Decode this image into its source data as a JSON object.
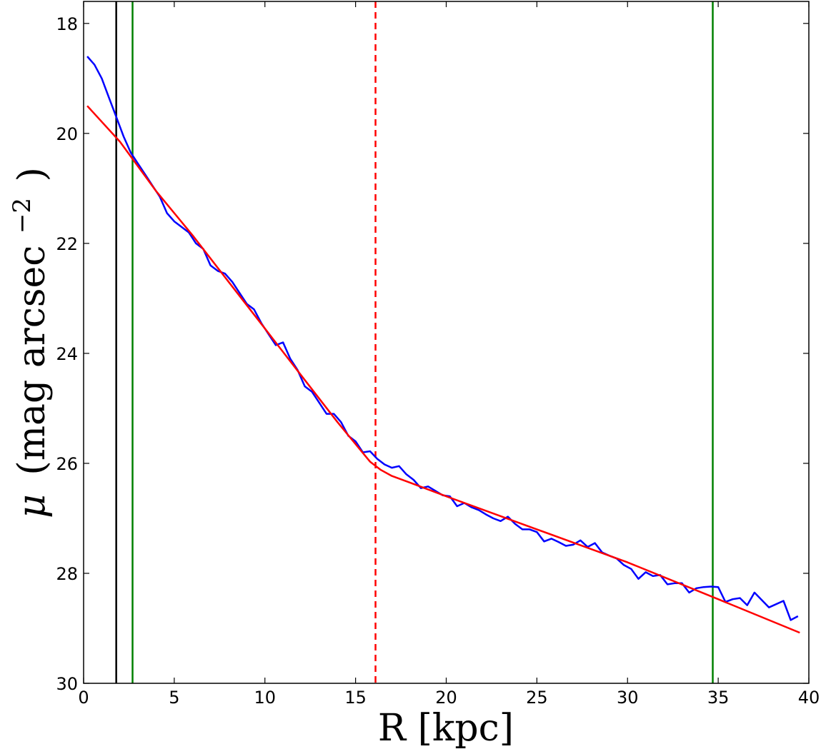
{
  "chart_data": {
    "type": "line",
    "title": "",
    "xlabel": "R [kpc]",
    "ylabel_symbol": "μ",
    "ylabel": "(mag arcsec",
    "ylabel_exponent": "−2",
    "ylabel_close": ")",
    "xlim": [
      0,
      40
    ],
    "ylim": [
      30,
      17.6
    ],
    "y_inverted": true,
    "grid": false,
    "legend": "none",
    "xticks": [
      0,
      5,
      10,
      15,
      20,
      25,
      30,
      35,
      40
    ],
    "xtick_labels": [
      "0",
      "5",
      "10",
      "15",
      "20",
      "25",
      "30",
      "35",
      "40"
    ],
    "yticks": [
      18,
      20,
      22,
      24,
      26,
      28,
      30
    ],
    "ytick_labels": [
      "18",
      "20",
      "22",
      "24",
      "26",
      "28",
      "30"
    ],
    "series": [
      {
        "color": "#0000ff",
        "x": [
          0.2,
          0.6,
          1.0,
          1.4,
          1.8,
          2.2,
          2.6,
          3.0,
          3.4,
          3.8,
          4.2,
          4.6,
          5.0,
          5.4,
          5.8,
          6.2,
          6.6,
          7.0,
          7.4,
          7.8,
          8.2,
          8.6,
          9.0,
          9.4,
          9.8,
          10.2,
          10.6,
          11.0,
          11.4,
          11.8,
          12.2,
          12.6,
          13.0,
          13.4,
          13.8,
          14.2,
          14.6,
          15.0,
          15.4,
          15.8,
          16.2,
          16.6,
          17.0,
          17.4,
          17.8,
          18.2,
          18.6,
          19.0,
          19.4,
          19.8,
          20.2,
          20.6,
          21.0,
          21.4,
          21.8,
          22.2,
          22.6,
          23.0,
          23.4,
          23.8,
          24.2,
          24.6,
          25.0,
          25.4,
          25.8,
          26.2,
          26.6,
          27.0,
          27.4,
          27.8,
          28.2,
          28.6,
          29.0,
          29.4,
          29.8,
          30.2,
          30.6,
          31.0,
          31.4,
          31.8,
          32.2,
          32.6,
          33.0,
          33.4,
          33.8,
          34.2,
          34.6,
          35.0,
          35.4,
          35.8,
          36.2,
          36.6,
          37.0,
          37.8,
          38.6,
          39.0,
          39.4
        ],
        "y": [
          18.6,
          18.75,
          19.0,
          19.35,
          19.7,
          20.05,
          20.35,
          20.55,
          20.75,
          20.95,
          21.15,
          21.45,
          21.6,
          21.7,
          21.8,
          22.0,
          22.1,
          22.4,
          22.5,
          22.55,
          22.7,
          22.9,
          23.1,
          23.2,
          23.45,
          23.65,
          23.85,
          23.8,
          24.1,
          24.3,
          24.6,
          24.7,
          24.9,
          25.1,
          25.1,
          25.25,
          25.5,
          25.6,
          25.8,
          25.78,
          25.92,
          26.02,
          26.08,
          26.05,
          26.2,
          26.3,
          26.45,
          26.42,
          26.5,
          26.58,
          26.6,
          26.78,
          26.72,
          26.8,
          26.85,
          26.93,
          27.0,
          27.05,
          26.97,
          27.1,
          27.2,
          27.2,
          27.25,
          27.42,
          27.37,
          27.43,
          27.5,
          27.48,
          27.4,
          27.52,
          27.45,
          27.62,
          27.68,
          27.73,
          27.85,
          27.92,
          28.1,
          27.98,
          28.05,
          28.03,
          28.2,
          28.18,
          28.18,
          28.35,
          28.27,
          28.25,
          28.24,
          28.25,
          28.52,
          28.47,
          28.45,
          28.58,
          28.35,
          28.62,
          28.5,
          28.85,
          28.78
        ]
      },
      {
        "color": "#ff0000",
        "x": [
          0.2,
          2.0,
          4.0,
          6.0,
          8.0,
          10.0,
          12.0,
          14.0,
          15.0,
          15.8,
          16.4,
          17.0,
          18.0,
          20.0,
          25.0,
          30.0,
          35.0,
          39.5
        ],
        "y": [
          19.5,
          20.15,
          21.05,
          21.85,
          22.7,
          23.55,
          24.4,
          25.25,
          25.65,
          25.97,
          26.12,
          26.23,
          26.35,
          26.6,
          27.2,
          27.8,
          28.47,
          29.08
        ]
      }
    ],
    "vlines": [
      {
        "x": 1.8,
        "color": "#000000",
        "style": "solid"
      },
      {
        "x": 2.7,
        "color": "#008000",
        "style": "solid"
      },
      {
        "x": 16.1,
        "color": "#ff0000",
        "style": "dashed"
      },
      {
        "x": 34.7,
        "color": "#008000",
        "style": "solid"
      }
    ]
  }
}
